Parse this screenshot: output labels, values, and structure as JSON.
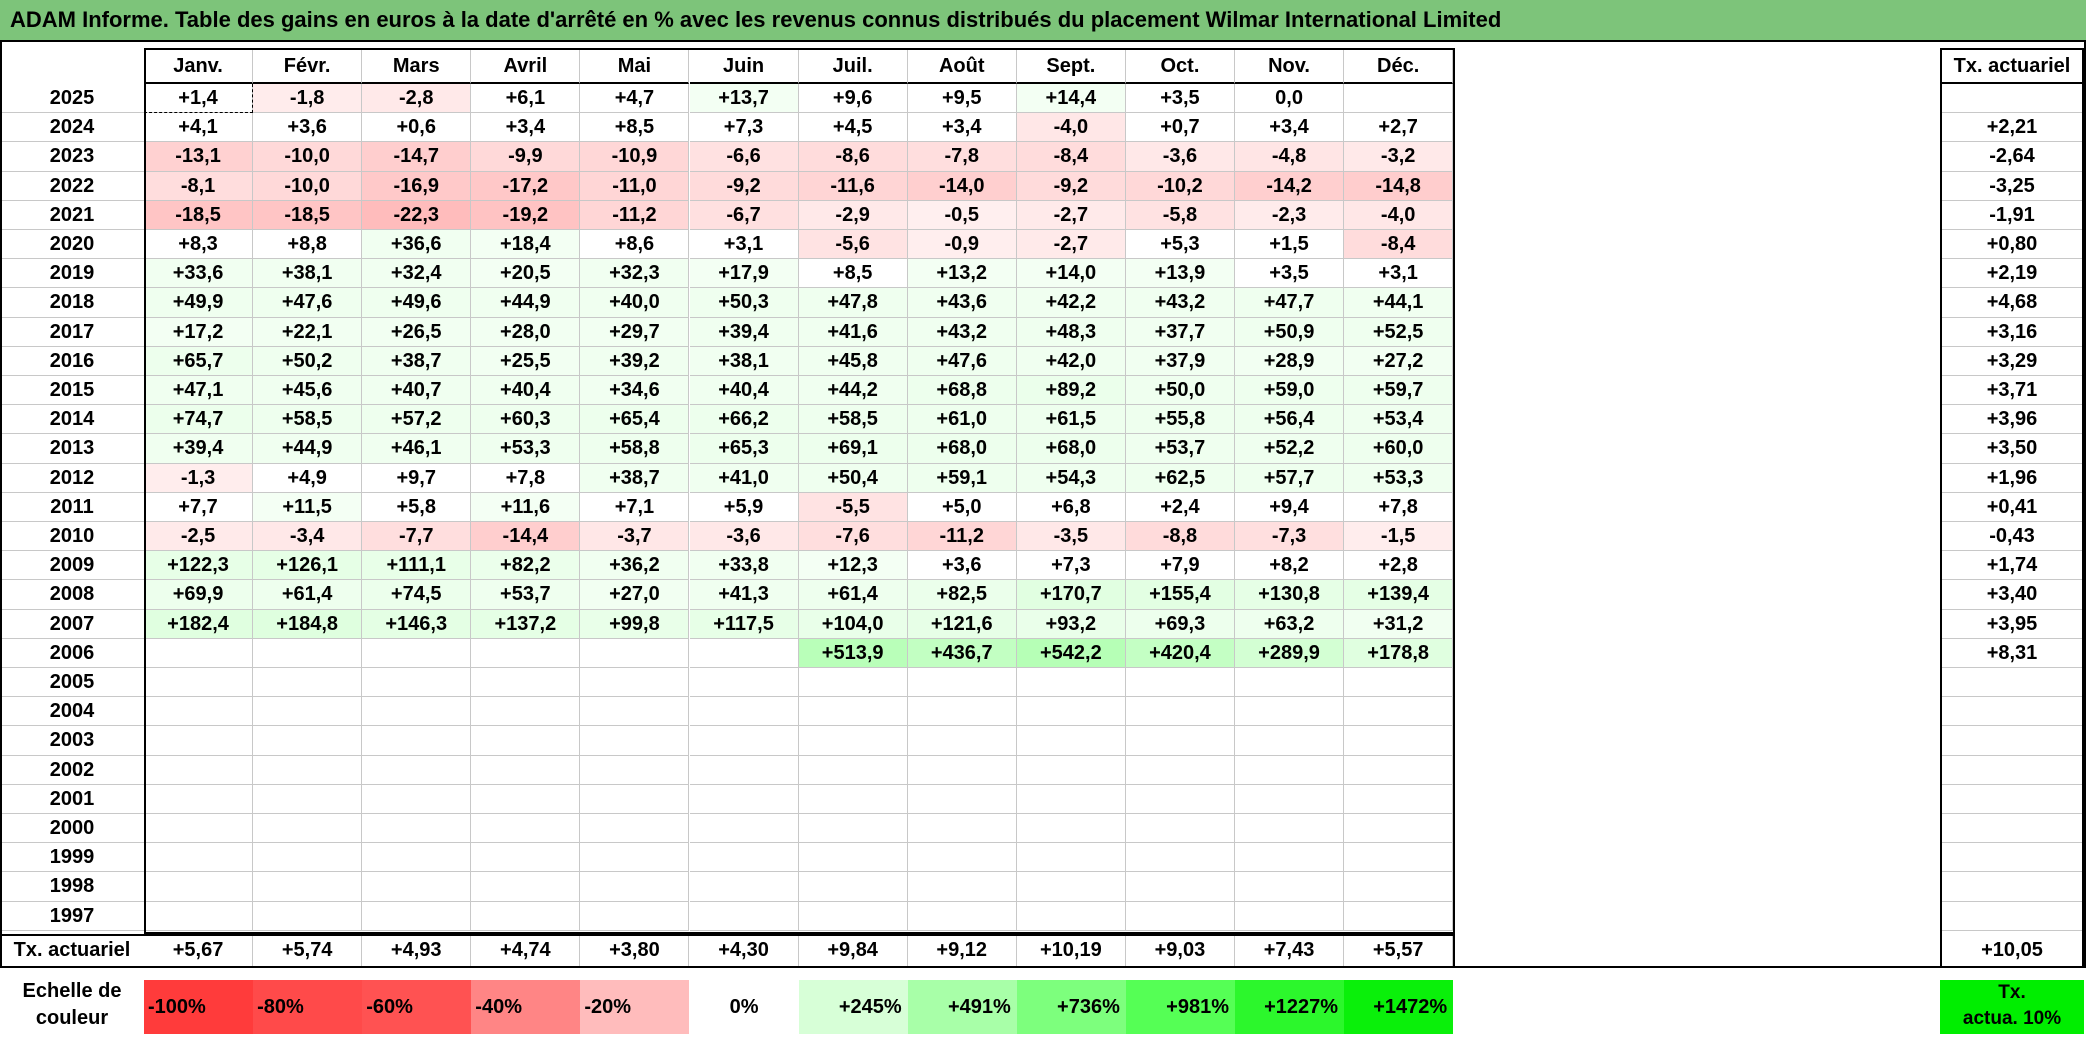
{
  "title": "ADAM Informe. Table des gains en euros à la date d'arrêté en % avec les revenus connus distribués du placement Wilmar International Limited",
  "months": [
    "Janv.",
    "Févr.",
    "Mars",
    "Avril",
    "Mai",
    "Juin",
    "Juil.",
    "Août",
    "Sept.",
    "Oct.",
    "Nov.",
    "Déc."
  ],
  "rate_header": "Tx. actuariel",
  "rows": [
    {
      "year": "2025",
      "vals": [
        "+1,4",
        "-1,8",
        "-2,8",
        "+6,1",
        "+4,7",
        "+13,7",
        "+9,6",
        "+9,5",
        "+14,4",
        "+3,5",
        "0,0",
        ""
      ],
      "rate": ""
    },
    {
      "year": "2024",
      "vals": [
        "+4,1",
        "+3,6",
        "+0,6",
        "+3,4",
        "+8,5",
        "+7,3",
        "+4,5",
        "+3,4",
        "-4,0",
        "+0,7",
        "+3,4",
        "+2,7"
      ],
      "rate": "+2,21"
    },
    {
      "year": "2023",
      "vals": [
        "-13,1",
        "-10,0",
        "-14,7",
        "-9,9",
        "-10,9",
        "-6,6",
        "-8,6",
        "-7,8",
        "-8,4",
        "-3,6",
        "-4,8",
        "-3,2"
      ],
      "rate": "-2,64"
    },
    {
      "year": "2022",
      "vals": [
        "-8,1",
        "-10,0",
        "-16,9",
        "-17,2",
        "-11,0",
        "-9,2",
        "-11,6",
        "-14,0",
        "-9,2",
        "-10,2",
        "-14,2",
        "-14,8"
      ],
      "rate": "-3,25"
    },
    {
      "year": "2021",
      "vals": [
        "-18,5",
        "-18,5",
        "-22,3",
        "-19,2",
        "-11,2",
        "-6,7",
        "-2,9",
        "-0,5",
        "-2,7",
        "-5,8",
        "-2,3",
        "-4,0"
      ],
      "rate": "-1,91"
    },
    {
      "year": "2020",
      "vals": [
        "+8,3",
        "+8,8",
        "+36,6",
        "+18,4",
        "+8,6",
        "+3,1",
        "-5,6",
        "-0,9",
        "-2,7",
        "+5,3",
        "+1,5",
        "-8,4"
      ],
      "rate": "+0,80"
    },
    {
      "year": "2019",
      "vals": [
        "+33,6",
        "+38,1",
        "+32,4",
        "+20,5",
        "+32,3",
        "+17,9",
        "+8,5",
        "+13,2",
        "+14,0",
        "+13,9",
        "+3,5",
        "+3,1"
      ],
      "rate": "+2,19"
    },
    {
      "year": "2018",
      "vals": [
        "+49,9",
        "+47,6",
        "+49,6",
        "+44,9",
        "+40,0",
        "+50,3",
        "+47,8",
        "+43,6",
        "+42,2",
        "+43,2",
        "+47,7",
        "+44,1"
      ],
      "rate": "+4,68"
    },
    {
      "year": "2017",
      "vals": [
        "+17,2",
        "+22,1",
        "+26,5",
        "+28,0",
        "+29,7",
        "+39,4",
        "+41,6",
        "+43,2",
        "+48,3",
        "+37,7",
        "+50,9",
        "+52,5"
      ],
      "rate": "+3,16"
    },
    {
      "year": "2016",
      "vals": [
        "+65,7",
        "+50,2",
        "+38,7",
        "+25,5",
        "+39,2",
        "+38,1",
        "+45,8",
        "+47,6",
        "+42,0",
        "+37,9",
        "+28,9",
        "+27,2"
      ],
      "rate": "+3,29"
    },
    {
      "year": "2015",
      "vals": [
        "+47,1",
        "+45,6",
        "+40,7",
        "+40,4",
        "+34,6",
        "+40,4",
        "+44,2",
        "+68,8",
        "+89,2",
        "+50,0",
        "+59,0",
        "+59,7"
      ],
      "rate": "+3,71"
    },
    {
      "year": "2014",
      "vals": [
        "+74,7",
        "+58,5",
        "+57,2",
        "+60,3",
        "+65,4",
        "+66,2",
        "+58,5",
        "+61,0",
        "+61,5",
        "+55,8",
        "+56,4",
        "+53,4"
      ],
      "rate": "+3,96"
    },
    {
      "year": "2013",
      "vals": [
        "+39,4",
        "+44,9",
        "+46,1",
        "+53,3",
        "+58,8",
        "+65,3",
        "+69,1",
        "+68,0",
        "+68,0",
        "+53,7",
        "+52,2",
        "+60,0"
      ],
      "rate": "+3,50"
    },
    {
      "year": "2012",
      "vals": [
        "-1,3",
        "+4,9",
        "+9,7",
        "+7,8",
        "+38,7",
        "+41,0",
        "+50,4",
        "+59,1",
        "+54,3",
        "+62,5",
        "+57,7",
        "+53,3"
      ],
      "rate": "+1,96"
    },
    {
      "year": "2011",
      "vals": [
        "+7,7",
        "+11,5",
        "+5,8",
        "+11,6",
        "+7,1",
        "+5,9",
        "-5,5",
        "+5,0",
        "+6,8",
        "+2,4",
        "+9,4",
        "+7,8"
      ],
      "rate": "+0,41"
    },
    {
      "year": "2010",
      "vals": [
        "-2,5",
        "-3,4",
        "-7,7",
        "-14,4",
        "-3,7",
        "-3,6",
        "-7,6",
        "-11,2",
        "-3,5",
        "-8,8",
        "-7,3",
        "-1,5"
      ],
      "rate": "-0,43"
    },
    {
      "year": "2009",
      "vals": [
        "+122,3",
        "+126,1",
        "+111,1",
        "+82,2",
        "+36,2",
        "+33,8",
        "+12,3",
        "+3,6",
        "+7,3",
        "+7,9",
        "+8,2",
        "+2,8"
      ],
      "rate": "+1,74"
    },
    {
      "year": "2008",
      "vals": [
        "+69,9",
        "+61,4",
        "+74,5",
        "+53,7",
        "+27,0",
        "+41,3",
        "+61,4",
        "+82,5",
        "+170,7",
        "+155,4",
        "+130,8",
        "+139,4"
      ],
      "rate": "+3,40"
    },
    {
      "year": "2007",
      "vals": [
        "+182,4",
        "+184,8",
        "+146,3",
        "+137,2",
        "+99,8",
        "+117,5",
        "+104,0",
        "+121,6",
        "+93,2",
        "+69,3",
        "+63,2",
        "+31,2"
      ],
      "rate": "+3,95"
    },
    {
      "year": "2006",
      "vals": [
        "",
        "",
        "",
        "",
        "",
        "",
        "+513,9",
        "+436,7",
        "+542,2",
        "+420,4",
        "+289,9",
        "+178,8"
      ],
      "rate": "+8,31"
    },
    {
      "year": "2005",
      "vals": [
        "",
        "",
        "",
        "",
        "",
        "",
        "",
        "",
        "",
        "",
        "",
        ""
      ],
      "rate": ""
    },
    {
      "year": "2004",
      "vals": [
        "",
        "",
        "",
        "",
        "",
        "",
        "",
        "",
        "",
        "",
        "",
        ""
      ],
      "rate": ""
    },
    {
      "year": "2003",
      "vals": [
        "",
        "",
        "",
        "",
        "",
        "",
        "",
        "",
        "",
        "",
        "",
        ""
      ],
      "rate": ""
    },
    {
      "year": "2002",
      "vals": [
        "",
        "",
        "",
        "",
        "",
        "",
        "",
        "",
        "",
        "",
        "",
        ""
      ],
      "rate": ""
    },
    {
      "year": "2001",
      "vals": [
        "",
        "",
        "",
        "",
        "",
        "",
        "",
        "",
        "",
        "",
        "",
        ""
      ],
      "rate": ""
    },
    {
      "year": "2000",
      "vals": [
        "",
        "",
        "",
        "",
        "",
        "",
        "",
        "",
        "",
        "",
        "",
        ""
      ],
      "rate": ""
    },
    {
      "year": "1999",
      "vals": [
        "",
        "",
        "",
        "",
        "",
        "",
        "",
        "",
        "",
        "",
        "",
        ""
      ],
      "rate": ""
    },
    {
      "year": "1998",
      "vals": [
        "",
        "",
        "",
        "",
        "",
        "",
        "",
        "",
        "",
        "",
        "",
        ""
      ],
      "rate": ""
    },
    {
      "year": "1997",
      "vals": [
        "",
        "",
        "",
        "",
        "",
        "",
        "",
        "",
        "",
        "",
        "",
        ""
      ],
      "rate": ""
    }
  ],
  "footer": {
    "label": "Tx. actuariel",
    "vals": [
      "+5,67",
      "+5,74",
      "+4,93",
      "+4,74",
      "+3,80",
      "+4,30",
      "+9,84",
      "+9,12",
      "+10,19",
      "+9,03",
      "+7,43",
      "+5,57"
    ],
    "total": "+10,05"
  },
  "scale": {
    "label_line1": "Echelle de",
    "label_line2": "couleur",
    "items": [
      {
        "label": "-100%",
        "color": "#ff3b3b"
      },
      {
        "label": "-80%",
        "color": "#ff4a4a"
      },
      {
        "label": "-60%",
        "color": "#ff5252"
      },
      {
        "label": "-40%",
        "color": "#ff8585"
      },
      {
        "label": "-20%",
        "color": "#ffbcbc"
      },
      {
        "label": "0%",
        "color": "#ffffff"
      },
      {
        "label": "+245%",
        "color": "#d7ffd7"
      },
      {
        "label": "+491%",
        "color": "#a8ffa8"
      },
      {
        "label": "+736%",
        "color": "#7dff7d"
      },
      {
        "label": "+981%",
        "color": "#55ff55"
      },
      {
        "label": "+1227%",
        "color": "#2cf72c"
      },
      {
        "label": "+1472%",
        "color": "#0af00a"
      }
    ],
    "last_line1": "Tx.",
    "last_line2": "actua. 10%",
    "last_color": "#00ee00"
  }
}
